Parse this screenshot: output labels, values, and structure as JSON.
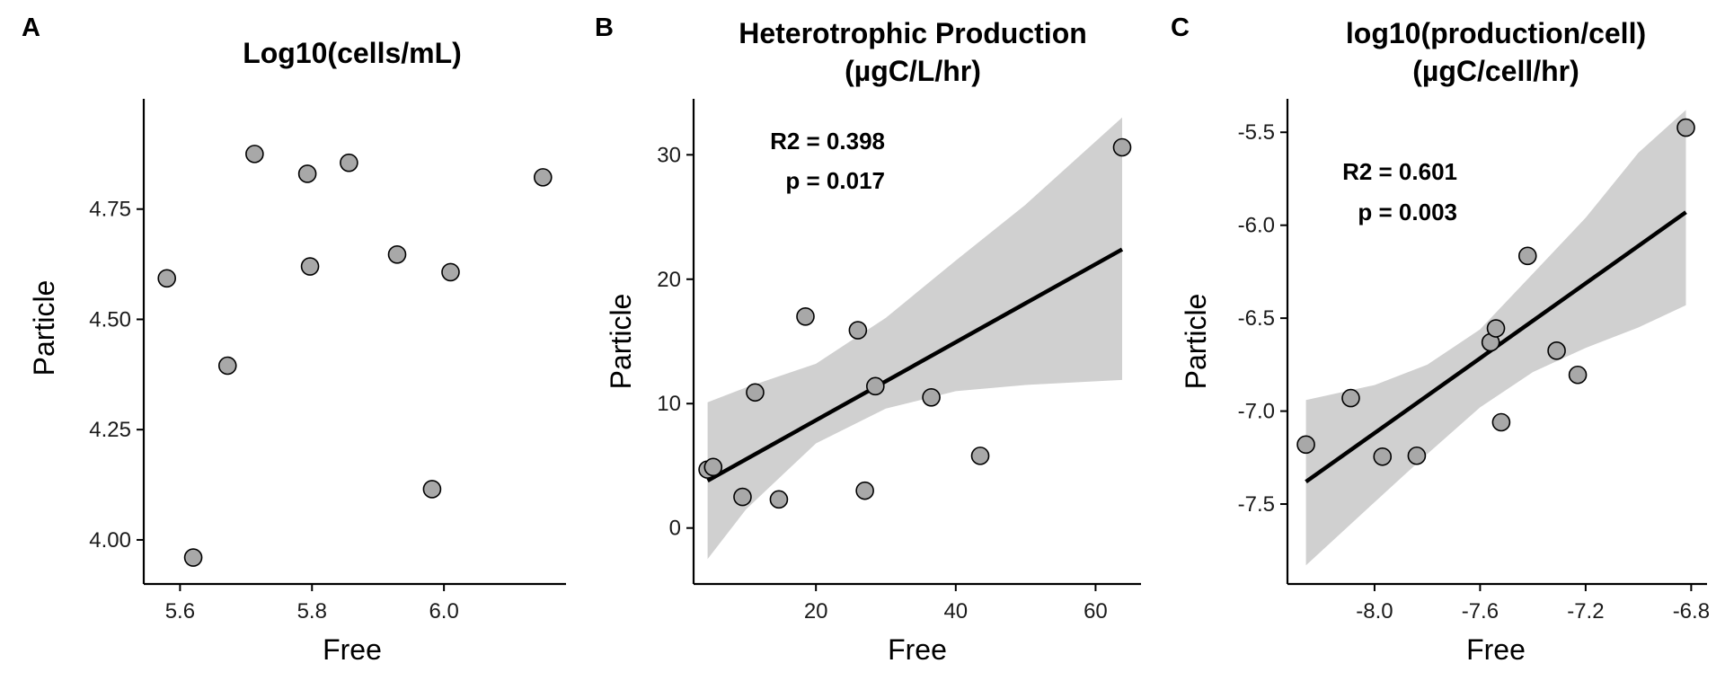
{
  "chart_data": [
    {
      "type": "scatter",
      "panel_letter": "A",
      "title": [
        "Log10(cells/mL)"
      ],
      "xlabel": "Free",
      "ylabel": "Particle",
      "xlim": [
        5.545,
        6.185
      ],
      "ylim": [
        3.9,
        5.0
      ],
      "xticks": [
        5.6,
        5.8,
        6.0
      ],
      "xtick_labels": [
        "5.6",
        "5.8",
        "6.0"
      ],
      "yticks": [
        4.0,
        4.25,
        4.5,
        4.75
      ],
      "ytick_labels": [
        "4.00",
        "4.25",
        "4.50",
        "4.75"
      ],
      "points": [
        {
          "x": 5.58,
          "y": 4.593
        },
        {
          "x": 5.62,
          "y": 3.96
        },
        {
          "x": 5.672,
          "y": 4.395
        },
        {
          "x": 5.713,
          "y": 4.875
        },
        {
          "x": 5.793,
          "y": 4.83
        },
        {
          "x": 5.797,
          "y": 4.62
        },
        {
          "x": 5.856,
          "y": 4.855
        },
        {
          "x": 5.929,
          "y": 4.647
        },
        {
          "x": 5.982,
          "y": 4.115
        },
        {
          "x": 6.01,
          "y": 4.607
        },
        {
          "x": 6.15,
          "y": 4.822
        }
      ]
    },
    {
      "type": "scatter",
      "panel_letter": "B",
      "title": [
        "Heterotrophic Production",
        "(µgC/L/hr)"
      ],
      "xlabel": "Free",
      "ylabel": "Particle",
      "xlim": [
        2.5,
        66.5
      ],
      "ylim": [
        -4.5,
        34.5
      ],
      "xticks": [
        20,
        40,
        60
      ],
      "xtick_labels": [
        "20",
        "40",
        "60"
      ],
      "yticks": [
        0,
        10,
        20,
        30
      ],
      "ytick_labels": [
        "0",
        "10",
        "20",
        "30"
      ],
      "annotations": [
        "R2 = 0.398",
        "p = 0.017"
      ],
      "points": [
        {
          "x": 4.5,
          "y": 4.7
        },
        {
          "x": 5.3,
          "y": 4.9
        },
        {
          "x": 9.5,
          "y": 2.5
        },
        {
          "x": 11.3,
          "y": 10.9
        },
        {
          "x": 14.7,
          "y": 2.3
        },
        {
          "x": 18.5,
          "y": 17.0
        },
        {
          "x": 26.0,
          "y": 15.9
        },
        {
          "x": 27.0,
          "y": 3.0
        },
        {
          "x": 28.5,
          "y": 11.4
        },
        {
          "x": 36.5,
          "y": 10.5
        },
        {
          "x": 43.5,
          "y": 5.8
        },
        {
          "x": 63.8,
          "y": 30.6
        }
      ],
      "fit_line": {
        "x": [
          4.5,
          63.8
        ],
        "y": [
          3.8,
          22.4
        ]
      },
      "confidence_band": {
        "x": [
          4.5,
          10,
          20,
          30,
          40,
          50,
          63.8
        ],
        "lower": [
          -2.5,
          1.5,
          6.8,
          9.6,
          11.0,
          11.5,
          11.9
        ],
        "upper": [
          10.1,
          11.3,
          13.2,
          16.9,
          21.5,
          26.0,
          33.0
        ]
      }
    },
    {
      "type": "scatter",
      "panel_letter": "C",
      "title": [
        "log10(production/cell)",
        "(µgC/cell/hr)"
      ],
      "xlabel": "Free",
      "ylabel": "Particle",
      "xlim": [
        -8.33,
        -6.74
      ],
      "ylim": [
        -7.93,
        -5.32
      ],
      "xticks": [
        -8.0,
        -7.6,
        -7.2,
        -6.8
      ],
      "xtick_labels": [
        "-8.0",
        "-7.6",
        "-7.2",
        "-6.8"
      ],
      "yticks": [
        -7.5,
        -7.0,
        -6.5,
        -6.0,
        -5.5
      ],
      "ytick_labels": [
        "-7.5",
        "-7.0",
        "-6.5",
        "-6.0",
        "-5.5"
      ],
      "annotations": [
        "R2 = 0.601",
        "p = 0.003"
      ],
      "points": [
        {
          "x": -8.26,
          "y": -7.18
        },
        {
          "x": -8.09,
          "y": -6.93
        },
        {
          "x": -7.97,
          "y": -7.245
        },
        {
          "x": -7.84,
          "y": -7.24
        },
        {
          "x": -7.56,
          "y": -6.63
        },
        {
          "x": -7.54,
          "y": -6.555
        },
        {
          "x": -7.52,
          "y": -7.06
        },
        {
          "x": -7.42,
          "y": -6.165
        },
        {
          "x": -7.31,
          "y": -6.675
        },
        {
          "x": -7.23,
          "y": -6.805
        },
        {
          "x": -6.82,
          "y": -5.475
        }
      ],
      "fit_line": {
        "x": [
          -8.26,
          -6.82
        ],
        "y": [
          -7.38,
          -5.93
        ]
      },
      "confidence_band": {
        "x": [
          -8.26,
          -8.0,
          -7.8,
          -7.6,
          -7.4,
          -7.2,
          -7.0,
          -6.82
        ],
        "lower": [
          -7.83,
          -7.49,
          -7.23,
          -6.98,
          -6.79,
          -6.66,
          -6.55,
          -6.43
        ],
        "upper": [
          -6.94,
          -6.86,
          -6.75,
          -6.56,
          -6.26,
          -5.96,
          -5.61,
          -5.38
        ]
      }
    }
  ]
}
